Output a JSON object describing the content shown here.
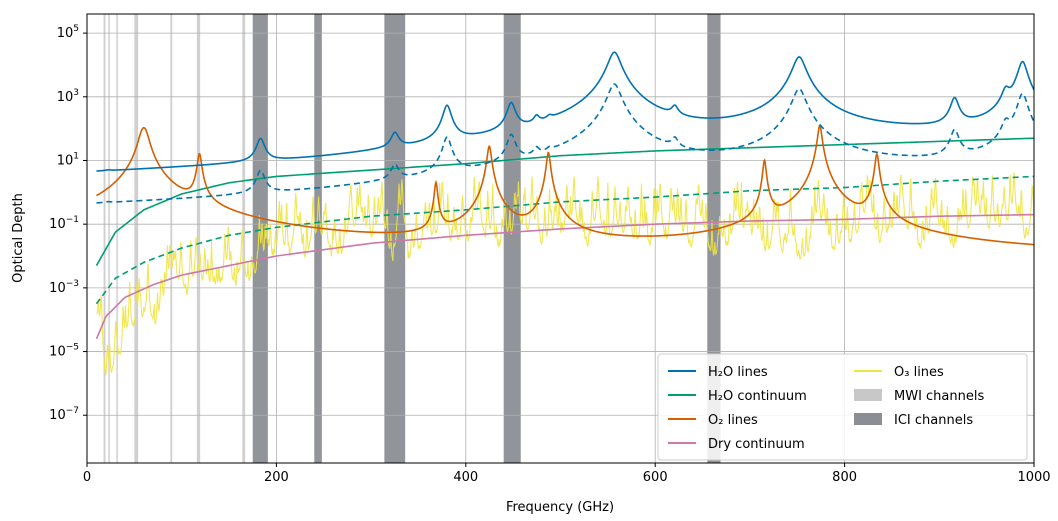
{
  "chart_data": {
    "type": "line",
    "xlabel": "Frequency (GHz)",
    "ylabel": "Optical Depth",
    "xlim": [
      0,
      1000
    ],
    "ylim_log10": [
      -8.5,
      5.6
    ],
    "yscale": "log",
    "grid": true,
    "legend_placement": "lower-right",
    "x_ticks": [
      0,
      200,
      400,
      600,
      800,
      1000
    ],
    "x_tick_labels": [
      "0",
      "200",
      "400",
      "600",
      "800",
      "1000"
    ],
    "y_ticks_log10": [
      -7,
      -5,
      -3,
      -1,
      1,
      3,
      5
    ],
    "y_tick_labels": [
      {
        "base": "10",
        "exp": "−7"
      },
      {
        "base": "10",
        "exp": "−5"
      },
      {
        "base": "10",
        "exp": "−3"
      },
      {
        "base": "10",
        "exp": "−1"
      },
      {
        "base": "10",
        "exp": "1"
      },
      {
        "base": "10",
        "exp": "3"
      },
      {
        "base": "10",
        "exp": "5"
      }
    ],
    "colors": {
      "h2o_lines": "#0072b2",
      "h2o_continuum": "#009e73",
      "o2_lines": "#d55e00",
      "dry_continuum": "#cc79a7",
      "o3_lines": "#f0e442",
      "mwi_channels": "#c8c8c8",
      "ici_channels": "#8b8f94"
    },
    "legend": [
      {
        "key": "h2o_lines",
        "label": "H₂O lines",
        "kind": "line"
      },
      {
        "key": "h2o_continuum",
        "label": "H₂O continuum",
        "kind": "line"
      },
      {
        "key": "o2_lines",
        "label": "O₂ lines",
        "kind": "line"
      },
      {
        "key": "dry_continuum",
        "label": "Dry continuum",
        "kind": "line"
      },
      {
        "key": "o3_lines",
        "label": "O₃ lines",
        "kind": "line"
      },
      {
        "key": "mwi_channels",
        "label": "MWI channels",
        "kind": "patch"
      },
      {
        "key": "ici_channels",
        "label": "ICI channels",
        "kind": "patch"
      }
    ],
    "mwi_channels_ghz": [
      [
        17.5,
        19.5
      ],
      [
        22.5,
        24.0
      ],
      [
        31.0,
        32.5
      ],
      [
        50.0,
        54.0
      ],
      [
        88.0,
        90.0
      ],
      [
        116.0,
        119.5
      ],
      [
        164.0,
        167.0
      ]
    ],
    "ici_channels_ghz": [
      [
        175.0,
        191.0
      ],
      [
        240.0,
        248.0
      ],
      [
        314.0,
        336.0
      ],
      [
        440.0,
        458.0
      ],
      [
        655.0,
        669.0
      ]
    ],
    "series_model": {
      "h2o_lines_solid": {
        "name": "H₂O lines",
        "background_log10_at": [
          [
            10,
            -2.5
          ],
          [
            100,
            -1.65
          ],
          [
            200,
            -0.55
          ],
          [
            300,
            0.3
          ],
          [
            500,
            1.3
          ],
          [
            700,
            1.8
          ],
          [
            900,
            1.8
          ],
          [
            1000,
            1.9
          ]
        ],
        "peaks": [
          {
            "f": 22.2,
            "log10": -0.6,
            "w": 3.5
          },
          {
            "f": 183.3,
            "log10": 1.6,
            "w": 4.0
          },
          {
            "f": 325.2,
            "log10": 1.7,
            "w": 4.0
          },
          {
            "f": 380.2,
            "log10": 2.7,
            "w": 4.0
          },
          {
            "f": 448.0,
            "log10": 2.75,
            "w": 4.0
          },
          {
            "f": 474.7,
            "log10": 2.0,
            "w": 3.0
          },
          {
            "f": 488.5,
            "log10": 1.7,
            "w": 3.0
          },
          {
            "f": 556.9,
            "log10": 4.4,
            "w": 6.0
          },
          {
            "f": 620.7,
            "log10": 2.4,
            "w": 3.5
          },
          {
            "f": 752.0,
            "log10": 4.25,
            "w": 6.0
          },
          {
            "f": 916.2,
            "log10": 2.9,
            "w": 4.0
          },
          {
            "f": 970.3,
            "log10": 3.1,
            "w": 4.0
          },
          {
            "f": 987.9,
            "log10": 4.1,
            "w": 4.5
          }
        ]
      },
      "h2o_lines_dashed": {
        "name": "H₂O lines",
        "background_log10_at": [
          [
            10,
            -3.5
          ],
          [
            100,
            -2.6
          ],
          [
            200,
            -1.5
          ],
          [
            300,
            -0.75
          ],
          [
            500,
            0.3
          ],
          [
            700,
            0.75
          ],
          [
            900,
            0.8
          ],
          [
            1000,
            0.9
          ]
        ],
        "peaks": [
          {
            "f": 22.2,
            "log10": -1.6,
            "w": 3.5
          },
          {
            "f": 183.3,
            "log10": 0.6,
            "w": 4.0
          },
          {
            "f": 325.2,
            "log10": 0.7,
            "w": 4.0
          },
          {
            "f": 380.2,
            "log10": 1.7,
            "w": 4.0
          },
          {
            "f": 448.0,
            "log10": 1.75,
            "w": 4.0
          },
          {
            "f": 474.7,
            "log10": 1.0,
            "w": 3.0
          },
          {
            "f": 488.5,
            "log10": 0.7,
            "w": 3.0
          },
          {
            "f": 556.9,
            "log10": 3.4,
            "w": 6.0
          },
          {
            "f": 620.7,
            "log10": 1.4,
            "w": 3.5
          },
          {
            "f": 752.0,
            "log10": 3.25,
            "w": 6.0
          },
          {
            "f": 916.2,
            "log10": 1.9,
            "w": 4.0
          },
          {
            "f": 970.3,
            "log10": 2.1,
            "w": 4.0
          },
          {
            "f": 987.9,
            "log10": 3.1,
            "w": 4.5
          }
        ]
      },
      "h2o_continuum_solid": {
        "name": "H₂O continuum",
        "points": [
          [
            10,
            -2.3
          ],
          [
            30,
            -1.25
          ],
          [
            60,
            -0.55
          ],
          [
            100,
            -0.05
          ],
          [
            150,
            0.3
          ],
          [
            200,
            0.5
          ],
          [
            300,
            0.7
          ],
          [
            400,
            0.9
          ],
          [
            500,
            1.15
          ],
          [
            600,
            1.3
          ],
          [
            700,
            1.4
          ],
          [
            800,
            1.5
          ],
          [
            900,
            1.6
          ],
          [
            1000,
            1.7
          ]
        ]
      },
      "h2o_continuum_dashed": {
        "name": "H₂O continuum",
        "points": [
          [
            10,
            -3.5
          ],
          [
            30,
            -2.7
          ],
          [
            60,
            -2.2
          ],
          [
            100,
            -1.75
          ],
          [
            150,
            -1.35
          ],
          [
            200,
            -1.1
          ],
          [
            300,
            -0.75
          ],
          [
            400,
            -0.55
          ],
          [
            500,
            -0.3
          ],
          [
            600,
            -0.15
          ],
          [
            700,
            0.05
          ],
          [
            800,
            0.15
          ],
          [
            900,
            0.35
          ],
          [
            1000,
            0.5
          ]
        ]
      },
      "o2_lines": {
        "name": "O₂ lines",
        "baseline_log10": -2.1,
        "peaks": [
          {
            "f": 58.0,
            "log10": 1.55,
            "w": 4.0
          },
          {
            "f": 60.0,
            "log10": 1.7,
            "w": 4.0
          },
          {
            "f": 62.0,
            "log10": 1.55,
            "w": 4.0
          },
          {
            "f": 118.75,
            "log10": 1.2,
            "w": 2.0
          },
          {
            "f": 368.5,
            "log10": 0.3,
            "w": 1.5
          },
          {
            "f": 424.8,
            "log10": 1.45,
            "w": 2.0
          },
          {
            "f": 487.2,
            "log10": 1.25,
            "w": 1.8
          },
          {
            "f": 715.4,
            "log10": 1.0,
            "w": 1.6
          },
          {
            "f": 773.8,
            "log10": 2.1,
            "w": 2.0
          },
          {
            "f": 834.1,
            "log10": 1.2,
            "w": 1.8
          }
        ]
      },
      "dry_continuum": {
        "name": "Dry continuum",
        "points": [
          [
            10,
            -4.6
          ],
          [
            20,
            -3.9
          ],
          [
            40,
            -3.3
          ],
          [
            70,
            -2.9
          ],
          [
            100,
            -2.6
          ],
          [
            200,
            -2.0
          ],
          [
            300,
            -1.6
          ],
          [
            400,
            -1.35
          ],
          [
            500,
            -1.15
          ],
          [
            600,
            -1.0
          ],
          [
            700,
            -0.9
          ],
          [
            800,
            -0.85
          ],
          [
            900,
            -0.75
          ],
          [
            1000,
            -0.7
          ]
        ]
      },
      "o3_lines": {
        "name": "O₃ lines",
        "envelope_log10": [
          [
            10,
            -4.8
          ],
          [
            20,
            -7.2
          ],
          [
            30,
            -6.5
          ],
          [
            50,
            -5.2
          ],
          [
            80,
            -4.4
          ],
          [
            100,
            -3.9
          ],
          [
            150,
            -3.2
          ],
          [
            200,
            -2.9
          ],
          [
            300,
            -2.4
          ],
          [
            400,
            -2.2
          ],
          [
            600,
            -2.3
          ],
          [
            800,
            -2.2
          ],
          [
            1000,
            -2.0
          ]
        ]
      }
    }
  }
}
